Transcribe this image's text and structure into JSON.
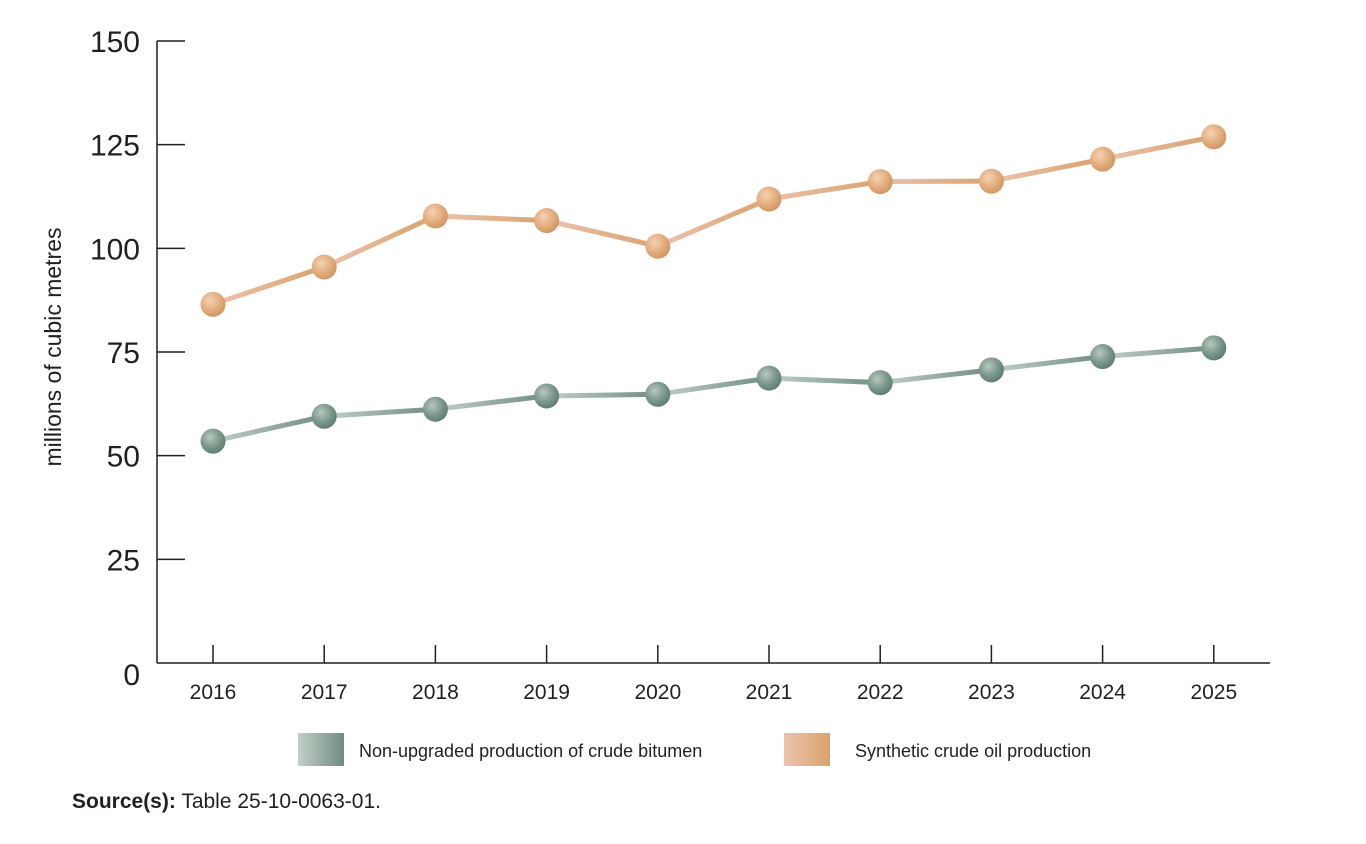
{
  "chart_data": {
    "type": "line",
    "ylabel": "millions of cubic metres",
    "xlabel": "",
    "ylim": [
      0,
      150
    ],
    "yticks": [
      0,
      25,
      50,
      75,
      100,
      125,
      150
    ],
    "x": [
      "2016",
      "2017",
      "2018",
      "2019",
      "2020",
      "2021",
      "2022",
      "2023",
      "2024",
      "2025"
    ],
    "grid": false,
    "legend_position": "bottom",
    "series": [
      {
        "name": "Non-upgraded production of crude bitumen",
        "color": "#7b978b",
        "values": [
          53.5,
          59.5,
          61.2,
          64.4,
          64.8,
          68.7,
          67.6,
          70.7,
          73.9,
          76.0
        ]
      },
      {
        "name": "Synthetic crude oil production",
        "color": "#e0ad7f",
        "values": [
          86.5,
          95.5,
          107.8,
          106.7,
          100.5,
          111.9,
          116.1,
          116.2,
          121.5,
          126.9
        ]
      }
    ]
  },
  "source": {
    "label": "Source(s):",
    "text": "Table 25-10-0063-01."
  }
}
